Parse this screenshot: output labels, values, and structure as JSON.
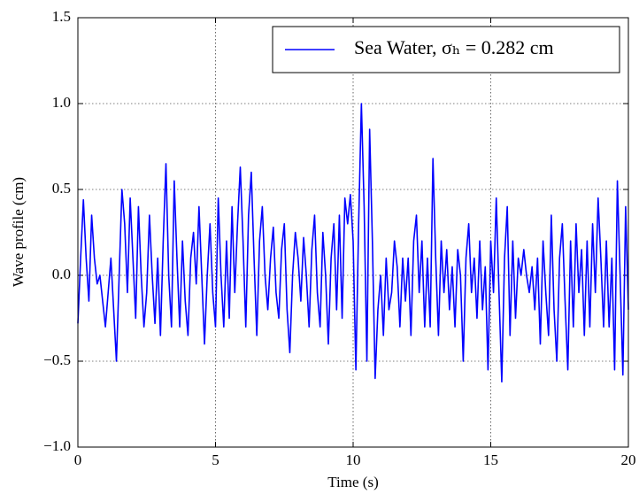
{
  "chart_data": {
    "type": "line",
    "xlabel": "Time (s)",
    "ylabel": "Wave profile (cm)",
    "xlim": [
      0,
      20
    ],
    "xticks": [
      0,
      5,
      10,
      15,
      20
    ],
    "ylim": [
      -1.0,
      1.5
    ],
    "yticks": [
      {
        "value": -1.0,
        "label": "−1.0"
      },
      {
        "value": -0.5,
        "label": "−0.5"
      },
      {
        "value": 0.0,
        "label": "0.0"
      },
      0.5,
      {
        "value": 1.0,
        "label": "1.0"
      },
      1.5
    ],
    "grid": true,
    "legend": "upper right",
    "x": [
      0,
      0.1,
      0.2,
      0.3,
      0.4,
      0.5,
      0.6,
      0.7,
      0.8,
      0.9,
      1,
      1.1,
      1.2,
      1.3,
      1.4,
      1.5,
      1.6,
      1.7,
      1.8,
      1.9,
      2,
      2.1,
      2.2,
      2.3,
      2.4,
      2.5,
      2.6,
      2.7,
      2.8,
      2.9,
      3,
      3.1,
      3.2,
      3.3,
      3.4,
      3.5,
      3.6,
      3.7,
      3.8,
      3.9,
      4,
      4.1,
      4.2,
      4.3,
      4.4,
      4.5,
      4.6,
      4.7,
      4.8,
      4.9,
      5,
      5.1,
      5.2,
      5.3,
      5.4,
      5.5,
      5.6,
      5.7,
      5.8,
      5.9,
      6,
      6.1,
      6.2,
      6.3,
      6.4,
      6.5,
      6.6,
      6.7,
      6.8,
      6.9,
      7,
      7.1,
      7.2,
      7.3,
      7.4,
      7.5,
      7.6,
      7.7,
      7.8,
      7.9,
      8,
      8.1,
      8.2,
      8.3,
      8.4,
      8.5,
      8.6,
      8.7,
      8.8,
      8.9,
      9,
      9.1,
      9.2,
      9.3,
      9.4,
      9.5,
      9.6,
      9.7,
      9.8,
      9.9,
      10,
      10.1,
      10.2,
      10.3,
      10.4,
      10.5,
      10.6,
      10.7,
      10.8,
      10.9,
      11,
      11.1,
      11.2,
      11.3,
      11.4,
      11.5,
      11.6,
      11.7,
      11.8,
      11.9,
      12,
      12.1,
      12.2,
      12.3,
      12.4,
      12.5,
      12.6,
      12.7,
      12.8,
      12.9,
      13,
      13.1,
      13.2,
      13.3,
      13.4,
      13.5,
      13.6,
      13.7,
      13.8,
      13.9,
      14,
      14.1,
      14.2,
      14.3,
      14.4,
      14.5,
      14.6,
      14.7,
      14.8,
      14.9,
      15,
      15.1,
      15.2,
      15.3,
      15.4,
      15.5,
      15.6,
      15.7,
      15.8,
      15.9,
      16,
      16.1,
      16.2,
      16.3,
      16.4,
      16.5,
      16.6,
      16.7,
      16.8,
      16.9,
      17,
      17.1,
      17.2,
      17.3,
      17.4,
      17.5,
      17.6,
      17.7,
      17.8,
      17.9,
      18,
      18.1,
      18.2,
      18.3,
      18.4,
      18.5,
      18.6,
      18.7,
      18.8,
      18.9,
      19,
      19.1,
      19.2,
      19.3,
      19.4,
      19.5,
      19.6,
      19.7,
      19.8,
      19.9,
      20
    ],
    "series": [
      {
        "name": "Sea Water, σₕ = 0.282 cm",
        "color": "#0000ff",
        "values": [
          -0.28,
          0.1,
          0.44,
          0.1,
          -0.15,
          0.35,
          0.1,
          -0.05,
          0.0,
          -0.15,
          -0.3,
          -0.1,
          0.1,
          -0.2,
          -0.5,
          0.0,
          0.5,
          0.3,
          -0.1,
          0.45,
          0.1,
          -0.25,
          0.4,
          0.0,
          -0.3,
          -0.1,
          0.35,
          0.0,
          -0.28,
          0.1,
          -0.35,
          0.2,
          0.65,
          0.0,
          -0.3,
          0.55,
          0.1,
          -0.3,
          0.2,
          -0.15,
          -0.35,
          0.1,
          0.25,
          -0.05,
          0.4,
          0.0,
          -0.4,
          0.0,
          0.3,
          -0.1,
          -0.3,
          0.45,
          0.0,
          -0.3,
          0.2,
          -0.25,
          0.4,
          -0.1,
          0.3,
          0.63,
          0.2,
          -0.3,
          0.35,
          0.6,
          0.1,
          -0.35,
          0.2,
          0.4,
          0.0,
          -0.2,
          0.1,
          0.28,
          -0.1,
          -0.25,
          0.15,
          0.3,
          -0.2,
          -0.45,
          0.0,
          0.25,
          0.1,
          -0.15,
          0.22,
          0.0,
          -0.3,
          0.15,
          0.35,
          -0.1,
          -0.3,
          0.25,
          0.0,
          -0.4,
          0.1,
          0.3,
          -0.2,
          0.35,
          -0.25,
          0.45,
          0.3,
          0.47,
          0.2,
          -0.55,
          0.3,
          1.0,
          0.4,
          -0.5,
          0.85,
          0.2,
          -0.6,
          -0.2,
          0.0,
          -0.35,
          0.1,
          -0.2,
          -0.1,
          0.2,
          0.05,
          -0.3,
          0.1,
          -0.15,
          0.1,
          -0.35,
          0.2,
          0.35,
          -0.1,
          0.2,
          -0.3,
          0.1,
          -0.3,
          0.68,
          0.1,
          -0.35,
          0.2,
          -0.1,
          0.15,
          -0.2,
          0.05,
          -0.3,
          0.15,
          0.0,
          -0.5,
          0.1,
          0.3,
          -0.1,
          0.1,
          -0.25,
          0.2,
          -0.2,
          0.05,
          -0.55,
          0.2,
          -0.1,
          0.45,
          -0.1,
          -0.62,
          0.1,
          0.4,
          -0.35,
          0.2,
          -0.25,
          0.1,
          0.0,
          0.15,
          0.0,
          -0.1,
          0.05,
          -0.2,
          0.1,
          -0.4,
          0.2,
          -0.1,
          -0.35,
          0.35,
          -0.2,
          -0.5,
          0.1,
          0.3,
          -0.15,
          -0.55,
          0.2,
          -0.3,
          0.3,
          -0.1,
          0.15,
          -0.35,
          0.2,
          -0.3,
          0.3,
          -0.1,
          0.45,
          0.1,
          -0.3,
          0.2,
          -0.3,
          0.1,
          -0.55,
          0.55,
          0.0,
          -0.58,
          0.4,
          -0.2
        ]
      }
    ]
  }
}
